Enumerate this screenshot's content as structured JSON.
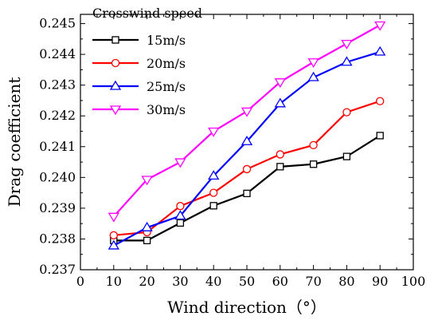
{
  "chart_data": {
    "type": "line",
    "xlabel": "Wind direction（°）",
    "ylabel": "Drag coefficient",
    "xlim": [
      0,
      100
    ],
    "ylim": [
      0.237,
      0.2453
    ],
    "x_ticks": [
      "0",
      "10",
      "20",
      "30",
      "40",
      "50",
      "60",
      "70",
      "80",
      "90",
      "100"
    ],
    "y_ticks": [
      "0.237",
      "0.238",
      "0.239",
      "0.240",
      "0.241",
      "0.242",
      "0.243",
      "0.244",
      "0.245"
    ],
    "legend_title": "Crosswind speed",
    "legend_position": "top-left",
    "grid": false,
    "x": [
      10,
      20,
      30,
      40,
      50,
      60,
      70,
      80,
      90
    ],
    "series": [
      {
        "name": "15m/s",
        "color": "#000000",
        "marker": "square",
        "values": [
          0.23795,
          0.23795,
          0.23852,
          0.23908,
          0.23948,
          0.24035,
          0.24043,
          0.24068,
          0.24136
        ]
      },
      {
        "name": "20m/s",
        "color": "#ff0000",
        "marker": "circle",
        "values": [
          0.23812,
          0.23822,
          0.23907,
          0.2395,
          0.24027,
          0.24075,
          0.24105,
          0.24212,
          0.24248
        ]
      },
      {
        "name": "25m/s",
        "color": "#0000ff",
        "marker": "triangle-up",
        "values": [
          0.23778,
          0.23837,
          0.23875,
          0.24005,
          0.24117,
          0.2424,
          0.24325,
          0.24375,
          0.24408
        ]
      },
      {
        "name": "30m/s",
        "color": "#ff00ff",
        "marker": "triangle-down",
        "values": [
          0.23873,
          0.23993,
          0.2405,
          0.2415,
          0.24215,
          0.2431,
          0.24375,
          0.24435,
          0.24495
        ]
      }
    ]
  }
}
